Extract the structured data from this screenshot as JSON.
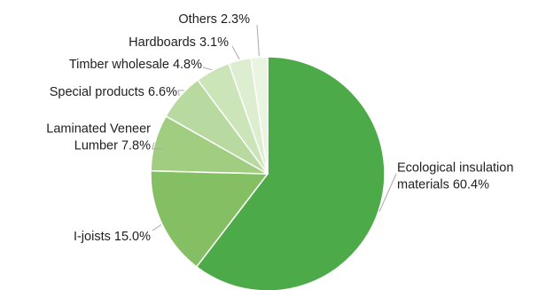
{
  "chart_data": {
    "type": "pie",
    "slices": [
      {
        "label": "Ecological insulation materials 60.4%",
        "lines": [
          "Ecological insulation",
          "materials 60.4%"
        ],
        "value": 60.4,
        "color": "#4cab48"
      },
      {
        "label": "I-joists 15.0%",
        "lines": [
          "I-joists 15.0%"
        ],
        "value": 15.0,
        "color": "#84bf63"
      },
      {
        "label": "Laminated Veneer Lumber 7.8%",
        "lines": [
          "Laminated Veneer",
          "Lumber 7.8%"
        ],
        "value": 7.8,
        "color": "#a1cd80"
      },
      {
        "label": "Special products 6.6%",
        "lines": [
          "Special products 6.6%"
        ],
        "value": 6.6,
        "color": "#b8d99f"
      },
      {
        "label": "Timber wholesale 4.8%",
        "lines": [
          "Timber wholesale 4.8%"
        ],
        "value": 4.8,
        "color": "#cbe4b8"
      },
      {
        "label": "Hardboards 3.1%",
        "lines": [
          "Hardboards 3.1%"
        ],
        "value": 3.1,
        "color": "#dcedd0"
      },
      {
        "label": "Others 2.3%",
        "lines": [
          "Others 2.3%"
        ],
        "value": 2.3,
        "color": "#e9f4e1"
      }
    ],
    "start_angle_deg": 0,
    "direction": "clockwise",
    "legend": "none"
  }
}
